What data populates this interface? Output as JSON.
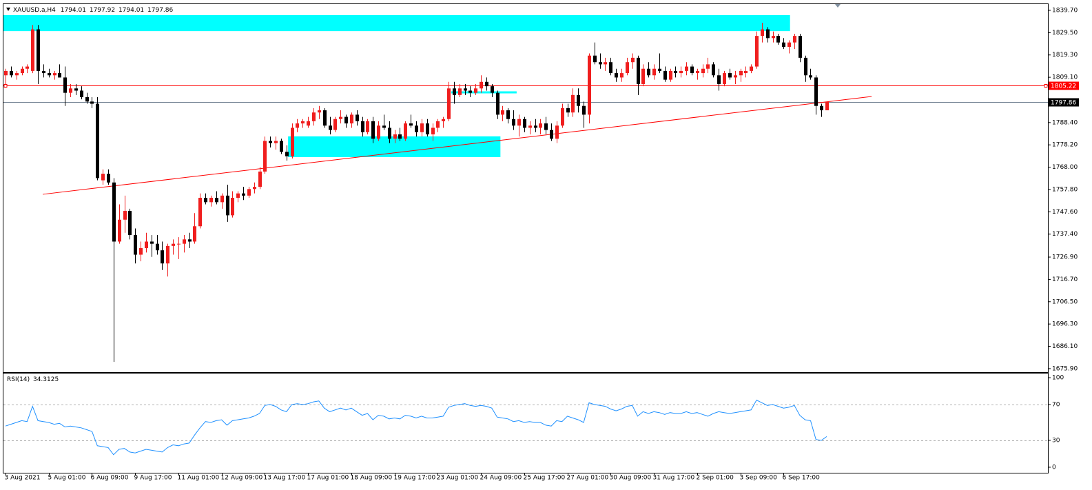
{
  "chart_data": [
    {
      "type": "candlestick",
      "title": "XAUUSD.a,H4",
      "up_color": "#f01e1e",
      "down_color": "#000000",
      "grid": false,
      "xlim": [
        -0.51,
        192.93
      ],
      "ylim": [
        1674.3,
        1841.9
      ],
      "yticks": [
        {
          "value": 1839.7,
          "label": "1839.70"
        },
        {
          "value": 1829.5,
          "label": "1829.50"
        },
        {
          "value": 1819.3,
          "label": "1819.30"
        },
        {
          "value": 1809.1,
          "label": "1809.10"
        },
        {
          "value": 1788.4,
          "label": "1788.40"
        },
        {
          "value": 1778.2,
          "label": "1778.20"
        },
        {
          "value": 1768,
          "label": "1768.00"
        },
        {
          "value": 1757.8,
          "label": "1757.80"
        },
        {
          "value": 1747.6,
          "label": "1747.60"
        },
        {
          "value": 1737.4,
          "label": "1737.40"
        },
        {
          "value": 1726.9,
          "label": "1726.90"
        },
        {
          "value": 1716.7,
          "label": "1716.70"
        },
        {
          "value": 1706.5,
          "label": "1706.50"
        },
        {
          "value": 1696.3,
          "label": "1696.30"
        },
        {
          "value": 1686.1,
          "label": "1686.10"
        },
        {
          "value": 1675.9,
          "label": "1675.90"
        }
      ],
      "categories": [
        "3 Aug 2021",
        null,
        null,
        null,
        null,
        null,
        null,
        null,
        "5 Aug 01:00",
        null,
        null,
        null,
        null,
        null,
        null,
        null,
        "6 Aug 09:00",
        null,
        null,
        null,
        null,
        null,
        null,
        null,
        "9 Aug 17:00",
        null,
        null,
        null,
        null,
        null,
        null,
        null,
        "11 Aug 01:00",
        null,
        null,
        null,
        null,
        null,
        null,
        null,
        "12 Aug 09:00",
        null,
        null,
        null,
        null,
        null,
        null,
        null,
        "13 Aug 17:00",
        null,
        null,
        null,
        null,
        null,
        null,
        null,
        "17 Aug 01:00",
        null,
        null,
        null,
        null,
        null,
        null,
        null,
        "18 Aug 09:00",
        null,
        null,
        null,
        null,
        null,
        null,
        null,
        "19 Aug 17:00",
        null,
        null,
        null,
        null,
        null,
        null,
        null,
        "23 Aug 01:00",
        null,
        null,
        null,
        null,
        null,
        null,
        null,
        "24 Aug 09:00",
        null,
        null,
        null,
        null,
        null,
        null,
        null,
        "25 Aug 17:00",
        null,
        null,
        null,
        null,
        null,
        null,
        null,
        "27 Aug 01:00",
        null,
        null,
        null,
        null,
        null,
        null,
        null,
        "30 Aug 09:00",
        null,
        null,
        null,
        null,
        null,
        null,
        null,
        "31 Aug 17:00",
        null,
        null,
        null,
        null,
        null,
        null,
        null,
        "2 Sep 01:00",
        null,
        null,
        null,
        null,
        null,
        null,
        null,
        "3 Sep 09:00",
        null,
        null,
        null,
        null,
        null,
        null,
        null,
        "6 Sep 17:00",
        null,
        null,
        null,
        null,
        null,
        null,
        null,
        null
      ],
      "ohlc": [
        [
          1810,
          1813,
          1806,
          1812
        ],
        [
          1812,
          1814,
          1809,
          1810
        ],
        [
          1810,
          1812,
          1808,
          1811
        ],
        [
          1811,
          1814,
          1810,
          1813
        ],
        [
          1813,
          1815,
          1811,
          1814
        ],
        [
          1812,
          1833,
          1811,
          1831
        ],
        [
          1831,
          1833,
          1806,
          1812
        ],
        [
          1812,
          1815,
          1809,
          1811
        ],
        [
          1811,
          1813,
          1809,
          1810
        ],
        [
          1810,
          1812,
          1808,
          1811
        ],
        [
          1811,
          1815,
          1809,
          1809
        ],
        [
          1809,
          1814,
          1796,
          1802
        ],
        [
          1802,
          1806,
          1800,
          1804
        ],
        [
          1804,
          1806,
          1801,
          1803
        ],
        [
          1803,
          1805,
          1799,
          1800
        ],
        [
          1800,
          1802,
          1797,
          1798
        ],
        [
          1798,
          1800,
          1795,
          1797
        ],
        [
          1797,
          1800,
          1762,
          1763
        ],
        [
          1762,
          1767,
          1760,
          1765
        ],
        [
          1765,
          1767,
          1760,
          1761
        ],
        [
          1761,
          1763,
          1679,
          1734
        ],
        [
          1734,
          1751,
          1733,
          1744
        ],
        [
          1744,
          1755,
          1738,
          1748
        ],
        [
          1748,
          1749,
          1735,
          1737
        ],
        [
          1737,
          1740,
          1724,
          1728
        ],
        [
          1728,
          1734,
          1725,
          1731
        ],
        [
          1731,
          1738,
          1729,
          1734
        ],
        [
          1734,
          1737,
          1727,
          1733
        ],
        [
          1733,
          1737,
          1728,
          1730
        ],
        [
          1730,
          1734,
          1721,
          1724
        ],
        [
          1724,
          1733,
          1718,
          1732
        ],
        [
          1732,
          1735,
          1728,
          1733
        ],
        [
          1733,
          1736,
          1726,
          1733
        ],
        [
          1733,
          1737,
          1729,
          1735
        ],
        [
          1735,
          1738,
          1731,
          1734
        ],
        [
          1734,
          1747,
          1733,
          1741
        ],
        [
          1741,
          1756,
          1740,
          1754
        ],
        [
          1754,
          1756,
          1751,
          1752
        ],
        [
          1752,
          1755,
          1750,
          1754
        ],
        [
          1754,
          1757,
          1751,
          1752
        ],
        [
          1752,
          1756,
          1749,
          1755
        ],
        [
          1755,
          1760,
          1743,
          1746
        ],
        [
          1746,
          1757,
          1745,
          1754
        ],
        [
          1754,
          1757,
          1752,
          1756
        ],
        [
          1756,
          1759,
          1753,
          1755
        ],
        [
          1755,
          1759,
          1754,
          1758
        ],
        [
          1758,
          1761,
          1756,
          1759
        ],
        [
          1759,
          1768,
          1758,
          1766
        ],
        [
          1766,
          1782,
          1765,
          1780
        ],
        [
          1780,
          1782,
          1777,
          1779
        ],
        [
          1779,
          1782,
          1776,
          1780
        ],
        [
          1780,
          1781,
          1774,
          1775
        ],
        [
          1775,
          1778,
          1771,
          1773
        ],
        [
          1773,
          1788,
          1772,
          1786
        ],
        [
          1786,
          1790,
          1784,
          1788
        ],
        [
          1788,
          1790,
          1786,
          1789
        ],
        [
          1787,
          1791,
          1786,
          1789
        ],
        [
          1789,
          1795,
          1787,
          1793
        ],
        [
          1793,
          1796,
          1790,
          1794
        ],
        [
          1794,
          1795,
          1786,
          1787
        ],
        [
          1787,
          1791,
          1783,
          1785
        ],
        [
          1785,
          1791,
          1784,
          1790
        ],
        [
          1790,
          1794,
          1788,
          1791
        ],
        [
          1791,
          1792,
          1786,
          1788
        ],
        [
          1788,
          1793,
          1786,
          1792
        ],
        [
          1792,
          1794,
          1787,
          1789
        ],
        [
          1789,
          1791,
          1782,
          1784
        ],
        [
          1784,
          1790,
          1783,
          1789
        ],
        [
          1789,
          1791,
          1779,
          1781
        ],
        [
          1781,
          1789,
          1780,
          1787
        ],
        [
          1787,
          1792,
          1785,
          1786
        ],
        [
          1786,
          1789,
          1779,
          1781
        ],
        [
          1781,
          1785,
          1779,
          1783
        ],
        [
          1783,
          1786,
          1780,
          1781
        ],
        [
          1781,
          1789,
          1780,
          1788
        ],
        [
          1788,
          1792,
          1786,
          1787
        ],
        [
          1787,
          1789,
          1782,
          1784
        ],
        [
          1784,
          1790,
          1782,
          1788
        ],
        [
          1788,
          1790,
          1782,
          1783
        ],
        [
          1783,
          1788,
          1780,
          1786
        ],
        [
          1786,
          1790,
          1784,
          1789
        ],
        [
          1789,
          1791,
          1786,
          1790
        ],
        [
          1790,
          1807,
          1789,
          1804
        ],
        [
          1804,
          1807,
          1797,
          1801
        ],
        [
          1801,
          1806,
          1800,
          1804
        ],
        [
          1804,
          1806,
          1801,
          1803
        ],
        [
          1803,
          1805,
          1800,
          1802
        ],
        [
          1802,
          1806,
          1801,
          1804
        ],
        [
          1804,
          1810,
          1802,
          1807
        ],
        [
          1807,
          1809,
          1803,
          1805
        ],
        [
          1805,
          1806,
          1800,
          1802
        ],
        [
          1802,
          1803,
          1790,
          1792
        ],
        [
          1792,
          1796,
          1789,
          1794
        ],
        [
          1794,
          1795,
          1788,
          1790
        ],
        [
          1790,
          1794,
          1785,
          1787
        ],
        [
          1787,
          1792,
          1782,
          1790
        ],
        [
          1790,
          1791,
          1784,
          1786
        ],
        [
          1786,
          1789,
          1783,
          1787
        ],
        [
          1787,
          1790,
          1784,
          1786
        ],
        [
          1786,
          1790,
          1783,
          1788
        ],
        [
          1788,
          1791,
          1783,
          1785
        ],
        [
          1785,
          1788,
          1780,
          1781
        ],
        [
          1781,
          1789,
          1779,
          1787
        ],
        [
          1787,
          1797,
          1786,
          1795
        ],
        [
          1795,
          1797,
          1791,
          1793
        ],
        [
          1793,
          1804,
          1791,
          1801
        ],
        [
          1801,
          1804,
          1793,
          1796
        ],
        [
          1796,
          1798,
          1786,
          1792
        ],
        [
          1792,
          1820,
          1788,
          1819
        ],
        [
          1819,
          1825,
          1815,
          1816
        ],
        [
          1816,
          1820,
          1813,
          1815
        ],
        [
          1815,
          1818,
          1812,
          1816
        ],
        [
          1816,
          1818,
          1810,
          1811
        ],
        [
          1811,
          1813,
          1807,
          1809
        ],
        [
          1809,
          1813,
          1807,
          1811
        ],
        [
          1811,
          1818,
          1810,
          1816
        ],
        [
          1816,
          1820,
          1813,
          1818
        ],
        [
          1818,
          1819,
          1801,
          1806
        ],
        [
          1806,
          1815,
          1805,
          1813
        ],
        [
          1813,
          1816,
          1809,
          1810
        ],
        [
          1810,
          1815,
          1808,
          1813
        ],
        [
          1813,
          1820,
          1811,
          1812
        ],
        [
          1812,
          1814,
          1807,
          1808
        ],
        [
          1808,
          1813,
          1807,
          1812
        ],
        [
          1812,
          1814,
          1809,
          1811
        ],
        [
          1811,
          1814,
          1809,
          1812
        ],
        [
          1812,
          1816,
          1810,
          1814
        ],
        [
          1814,
          1815,
          1810,
          1811
        ],
        [
          1811,
          1813,
          1808,
          1812
        ],
        [
          1811,
          1815,
          1809,
          1813
        ],
        [
          1813,
          1818,
          1811,
          1815
        ],
        [
          1815,
          1816,
          1809,
          1810
        ],
        [
          1810,
          1813,
          1803,
          1806
        ],
        [
          1806,
          1812,
          1805,
          1811
        ],
        [
          1811,
          1813,
          1808,
          1809
        ],
        [
          1809,
          1812,
          1806,
          1810
        ],
        [
          1810,
          1813,
          1807,
          1812
        ],
        [
          1811,
          1814,
          1809,
          1812
        ],
        [
          1812,
          1815,
          1811,
          1814
        ],
        [
          1814,
          1830,
          1813,
          1828
        ],
        [
          1828,
          1834,
          1825,
          1831
        ],
        [
          1831,
          1832,
          1825,
          1827
        ],
        [
          1827,
          1830,
          1825,
          1828
        ],
        [
          1828,
          1829,
          1824,
          1825
        ],
        [
          1825,
          1827,
          1822,
          1823
        ],
        [
          1823,
          1826,
          1820,
          1825
        ],
        [
          1825,
          1829,
          1822,
          1828
        ],
        [
          1828,
          1829,
          1816,
          1818
        ],
        [
          1818,
          1819,
          1807,
          1810
        ],
        [
          1810,
          1813,
          1808,
          1809
        ],
        [
          1809,
          1810,
          1792,
          1796
        ],
        [
          1796,
          1797,
          1791,
          1794
        ],
        [
          1794.01,
          1797.92,
          1794.01,
          1797.86
        ]
      ],
      "hlines": [
        {
          "value": 1805.22,
          "color": "#ff0000"
        },
        {
          "value": 1797.86,
          "color": "#708090"
        }
      ],
      "trendline": {
        "x": [
          6.9,
          160.3
        ],
        "y": [
          1755.6,
          1800.3
        ],
        "color": "#ff0000"
      },
      "zones": [
        {
          "x": [
            -0.4,
            145.2
          ],
          "y": [
            1830.2,
            1837.5
          ],
          "color": "#00ffff"
        },
        {
          "x": [
            52.3,
            91.6
          ],
          "y": [
            1772.6,
            1782.1
          ],
          "color": "#00ffff"
        }
      ],
      "segment": {
        "x": [
          82.5,
          94.6
        ],
        "y": 1802.2,
        "color": "#00ffff"
      }
    },
    {
      "type": "line",
      "title": "RSI(14)",
      "color": "#1e90ff",
      "ylim": [
        -6.2,
        105.4
      ],
      "yticks": [
        100,
        70,
        30,
        0
      ],
      "levels": [
        70,
        30
      ],
      "values": [
        46,
        48,
        50,
        52,
        51,
        68,
        52,
        51,
        50,
        48,
        49,
        45,
        46,
        45,
        44,
        42,
        40,
        24,
        23,
        22,
        14,
        20,
        21,
        17,
        16,
        18,
        20,
        19,
        18,
        17,
        22,
        25,
        24,
        26,
        27,
        36,
        44,
        51,
        50,
        52,
        53,
        47,
        52,
        53,
        54,
        55,
        57,
        60,
        69,
        70,
        68,
        64,
        62,
        70,
        71,
        70,
        71,
        73,
        74,
        66,
        62,
        64,
        66,
        64,
        66,
        62,
        58,
        60,
        53,
        58,
        57,
        54,
        55,
        54,
        58,
        57,
        55,
        57,
        55,
        55,
        56,
        57,
        67,
        69,
        70,
        71,
        69,
        68,
        69,
        68,
        66,
        56,
        55,
        54,
        51,
        52,
        50,
        51,
        50,
        50,
        47,
        46,
        52,
        51,
        57,
        55,
        53,
        50,
        72,
        70,
        69,
        68,
        65,
        63,
        65,
        68,
        69,
        57,
        62,
        60,
        62,
        61,
        59,
        61,
        60,
        60,
        62,
        60,
        61,
        59,
        57,
        60,
        62,
        61,
        60,
        61,
        62,
        63,
        64,
        75,
        72,
        69,
        70,
        68,
        66,
        67,
        69,
        58,
        53,
        52,
        31,
        30,
        34.3125
      ]
    }
  ]
}
